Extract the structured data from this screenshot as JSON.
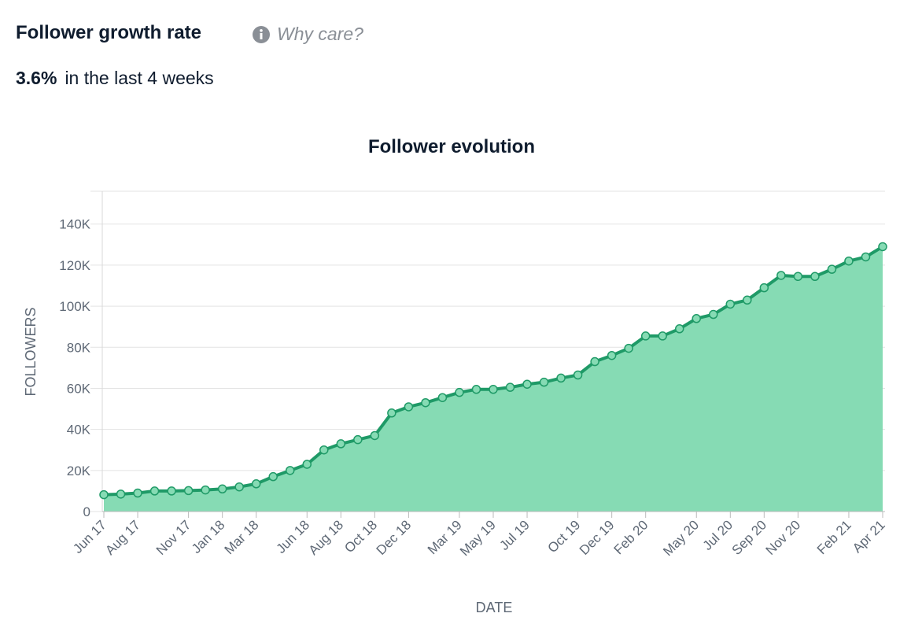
{
  "header": {
    "title": "Follower growth rate",
    "info_link": "Why care?",
    "rate": "3.6%",
    "rate_caption": "in the last 4 weeks"
  },
  "chart_data": {
    "type": "area",
    "title": "Follower evolution",
    "xlabel": "DATE",
    "ylabel": "FOLLOWERS",
    "categories": [
      "Jun 17",
      null,
      "Aug 17",
      null,
      null,
      "Nov 17",
      null,
      "Jan 18",
      null,
      "Mar 18",
      null,
      null,
      "Jun 18",
      null,
      "Aug 18",
      null,
      "Oct 18",
      null,
      "Dec 18",
      null,
      null,
      "Mar 19",
      null,
      "May 19",
      null,
      "Jul 19",
      null,
      null,
      "Oct 19",
      null,
      "Dec 19",
      null,
      "Feb 20",
      null,
      null,
      "May 20",
      null,
      "Jul 20",
      null,
      "Sep 20",
      null,
      "Nov 20",
      null,
      null,
      "Feb 21",
      null,
      "Apr 21"
    ],
    "values": [
      8200,
      8500,
      9000,
      10000,
      10000,
      10200,
      10500,
      11000,
      12000,
      13500,
      17000,
      20000,
      23000,
      30000,
      33000,
      35000,
      37000,
      48000,
      51000,
      53000,
      55500,
      58000,
      59500,
      59500,
      60500,
      62000,
      63000,
      65000,
      66500,
      73000,
      76000,
      79500,
      85500,
      85500,
      89000,
      94000,
      96000,
      101000,
      103000,
      109000,
      115000,
      114500,
      114500,
      118000,
      122000,
      124000,
      129000
    ],
    "line_color": "#1f9a67",
    "fill_color": "#86dbb4",
    "ylim": [
      0,
      156000
    ],
    "yticks": [
      0,
      {
        "value": 20000,
        "label": "20K"
      },
      {
        "value": 40000,
        "label": "40K"
      },
      {
        "value": 60000,
        "label": "60K"
      },
      {
        "value": 80000,
        "label": "80K"
      },
      {
        "value": 100000,
        "label": "100K"
      },
      {
        "value": 120000,
        "label": "120K"
      },
      {
        "value": 140000,
        "label": "140K"
      }
    ],
    "grid": true
  }
}
